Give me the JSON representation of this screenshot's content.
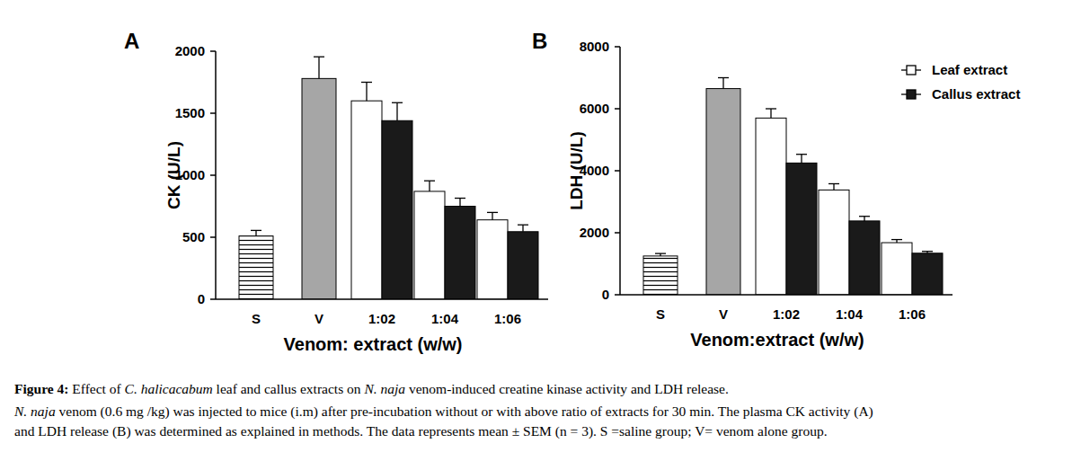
{
  "chart_data": [
    {
      "type": "bar",
      "panel": "A",
      "y_label": "CK (U/L)",
      "x_label": "Venom: extract (w/w)",
      "categories": [
        "S",
        "V",
        "1:02",
        "1:04",
        "1:06"
      ],
      "ylim": [
        0,
        2000
      ],
      "yticks": [
        0,
        500,
        1000,
        1500,
        2000
      ],
      "grid": false,
      "series": [
        {
          "colors": [
            "#ffffff",
            "#a6a6a6",
            null,
            null,
            null
          ],
          "values": [
            510,
            1780,
            null,
            null,
            null
          ],
          "errors": [
            45,
            175,
            null,
            null,
            null
          ]
        },
        {
          "color": "#ffffff",
          "values": [
            null,
            null,
            1600,
            870,
            640
          ],
          "errors": [
            null,
            null,
            150,
            85,
            60
          ]
        },
        {
          "color": "#1a1a1a",
          "values": [
            null,
            null,
            1440,
            750,
            545
          ],
          "errors": [
            null,
            null,
            145,
            65,
            55
          ]
        }
      ]
    },
    {
      "type": "bar",
      "panel": "B",
      "y_label": "LDH (U/L)",
      "x_label": "Venom:extract (w/w)",
      "categories": [
        "S",
        "V",
        "1:02",
        "1:04",
        "1:06"
      ],
      "ylim": [
        0,
        8000
      ],
      "yticks": [
        0,
        2000,
        4000,
        6000,
        8000
      ],
      "grid": false,
      "legend": "upper right",
      "series": [
        {
          "colors": [
            "#ffffff",
            "#a6a6a6",
            null,
            null,
            null
          ],
          "values": [
            1250,
            6650,
            null,
            null,
            null
          ],
          "errors": [
            80,
            350,
            null,
            null,
            null
          ]
        },
        {
          "name": "Leaf extract",
          "color": "#ffffff",
          "values": [
            null,
            null,
            5700,
            3380,
            1680
          ],
          "errors": [
            null,
            null,
            300,
            200,
            100
          ]
        },
        {
          "name": "Callus extract",
          "color": "#1a1a1a",
          "values": [
            null,
            null,
            4250,
            2380,
            1340
          ],
          "errors": [
            null,
            null,
            280,
            150,
            60
          ]
        }
      ]
    }
  ],
  "caption": {
    "lines": [
      [
        {
          "text": "Figure 4:",
          "bold": true
        },
        {
          "text": " Effect of "
        },
        {
          "text": "C. halicacabum",
          "italic": true
        },
        {
          "text": " leaf and callus extracts on "
        },
        {
          "text": "N. naja",
          "italic": true
        },
        {
          "text": " venom-induced creatine kinase activity and LDH release."
        }
      ],
      [
        {
          "text": "N. naja",
          "italic": true
        },
        {
          "text": " venom (0.6 mg /kg) was injected to mice (i.m) after pre-incubation without or with above ratio of extracts for 30 min. The plasma CK activity (A)"
        }
      ],
      [
        {
          "text": "and LDH release (B) was determined as explained in methods. The data represents mean ± SEM (n = 3). S =saline group; V= venom alone group."
        }
      ]
    ]
  }
}
